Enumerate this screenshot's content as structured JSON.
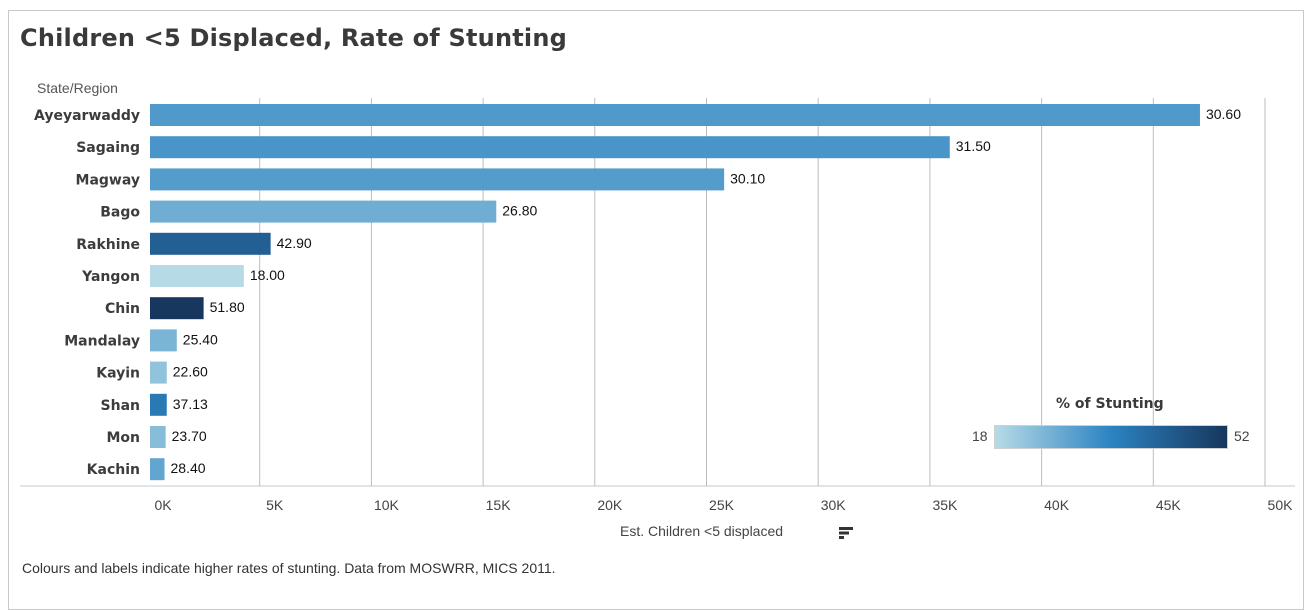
{
  "title": "Children <5 Displaced, Rate of Stunting",
  "row_header": "State/Region",
  "caption": "Colours and labels indicate higher rates of stunting. Data from MOSWRR, MICS 2011.",
  "legend": {
    "title": "% of Stunting",
    "min_label": "18",
    "max_label": "52",
    "min": 18,
    "max": 52,
    "color_low": "#b7dbe6",
    "color_mid": "#2c83c2",
    "color_high": "#17365d"
  },
  "chart_data": {
    "type": "bar",
    "orientation": "horizontal",
    "title": "Children <5 Displaced, Rate of Stunting",
    "xlabel": "Est. Children <5 displaced",
    "ylabel": "State/Region",
    "xlim": [
      0,
      50000
    ],
    "x_ticks": [
      0,
      5000,
      10000,
      15000,
      20000,
      25000,
      30000,
      35000,
      40000,
      45000,
      50000
    ],
    "x_tick_labels": [
      "0K",
      "5K",
      "10K",
      "15K",
      "20K",
      "25K",
      "30K",
      "35K",
      "40K",
      "45K",
      "50K"
    ],
    "grid": true,
    "categories": [
      "Ayeyarwaddy",
      "Sagaing",
      "Magway",
      "Bago",
      "Rakhine",
      "Yangon",
      "Chin",
      "Mandalay",
      "Kayin",
      "Shan",
      "Mon",
      "Kachin"
    ],
    "values": [
      47000,
      35800,
      25700,
      15500,
      5400,
      4200,
      2400,
      1200,
      750,
      750,
      700,
      650
    ],
    "stunting_labels": [
      "30.60",
      "31.50",
      "30.10",
      "26.80",
      "42.90",
      "18.00",
      "51.80",
      "25.40",
      "22.60",
      "37.13",
      "23.70",
      "28.40"
    ],
    "stunting_values": [
      30.6,
      31.5,
      30.1,
      26.8,
      42.9,
      18.0,
      51.8,
      25.4,
      22.6,
      37.13,
      23.7,
      28.4
    ]
  }
}
